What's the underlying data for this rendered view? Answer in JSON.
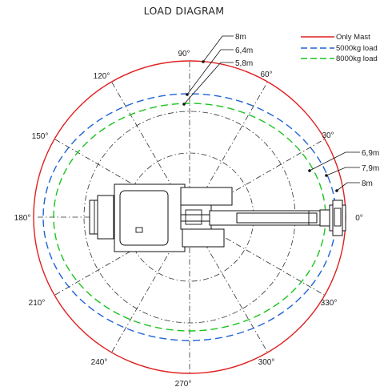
{
  "title": "LOAD DIAGRAM",
  "legend": [
    {
      "label": "Only Mast",
      "color": "#e02020",
      "style": "solid"
    },
    {
      "label": "5000kg load",
      "color": "#1f63d6",
      "style": "dashed"
    },
    {
      "label": "8000kg load",
      "color": "#19c41e",
      "style": "dashed"
    }
  ],
  "angle_labels": {
    "a0": "0°",
    "a30": "30°",
    "a60": "60°",
    "a90": "90°",
    "a120": "120°",
    "a150": "150°",
    "a180": "180°",
    "a210": "210°",
    "a240": "240°",
    "a270": "270°",
    "a300": "300°",
    "a330": "330°"
  },
  "top_callouts": [
    "8m",
    "6,4m",
    "5,8m"
  ],
  "right_callouts": [
    "6,9m",
    "7,9m",
    "8m"
  ]
}
